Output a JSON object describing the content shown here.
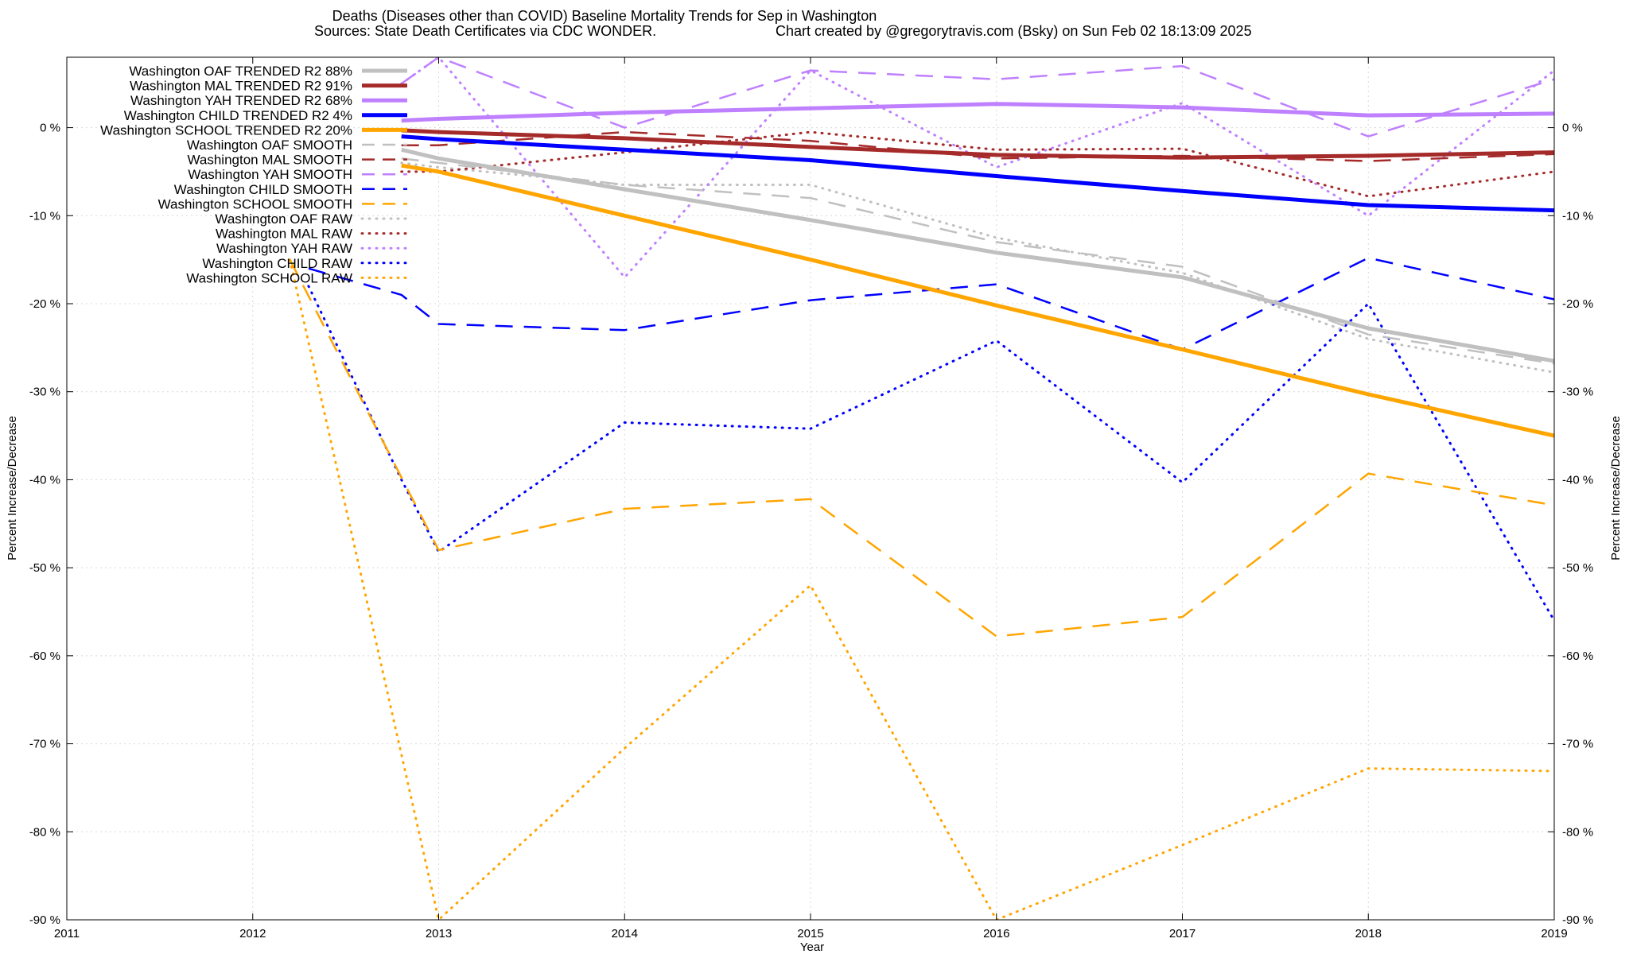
{
  "chart_data": {
    "type": "line",
    "title": "Deaths (Diseases other than COVID)  Baseline Mortality Trends for Sep in Washington",
    "subtitle_left": "Sources: State Death Certificates via CDC WONDER.",
    "subtitle_right": "Chart created by @gregorytravis.com (Bsky) on Sun Feb 02 18:13:09 2025",
    "xlabel": "Year",
    "ylabel": "Percent Increase/Decrease",
    "y2label": "Percent Increase/Decrease",
    "xlim": [
      2011,
      2019
    ],
    "ylim": [
      -90,
      8
    ],
    "x_ticks": [
      "2011",
      "2012",
      "2013",
      "2014",
      "2015",
      "2016",
      "2017",
      "2018",
      "2019"
    ],
    "y_ticks": [
      "0 %",
      "-10 %",
      "-20 %",
      "-30 %",
      "-40 %",
      "-50 %",
      "-60 %",
      "-70 %",
      "-80 %",
      "-90 %"
    ],
    "y_tick_values": [
      0,
      -10,
      -20,
      -30,
      -40,
      -50,
      -60,
      -70,
      -80,
      -90
    ],
    "grid": true,
    "legend_position": "top-left",
    "series": [
      {
        "name": "Washington OAF TRENDED R2  88%",
        "color": "#c0c0c0",
        "style": "solid",
        "x": [
          2012.8,
          2013,
          2014,
          2015,
          2016,
          2017,
          2018,
          2019
        ],
        "values": [
          -2.5,
          -3.5,
          -7,
          -10.5,
          -14.2,
          -17,
          -22.8,
          -26.5
        ]
      },
      {
        "name": "Washington MAL TRENDED R2  91%",
        "color": "#a52a2a",
        "style": "solid",
        "x": [
          2012.8,
          2013,
          2014,
          2015,
          2016,
          2017,
          2018,
          2019
        ],
        "values": [
          -0.3,
          -0.5,
          -1.2,
          -2.2,
          -3.1,
          -3.4,
          -3.2,
          -2.8
        ]
      },
      {
        "name": "Washington YAH TRENDED R2  68%",
        "color": "#bf80ff",
        "style": "solid",
        "x": [
          2012.8,
          2013,
          2014,
          2015,
          2016,
          2017,
          2018,
          2019
        ],
        "values": [
          0.8,
          1.0,
          1.7,
          2.2,
          2.7,
          2.3,
          1.4,
          1.6
        ]
      },
      {
        "name": "Washington CHILD TRENDED R2   4%",
        "color": "#0000ff",
        "style": "solid",
        "x": [
          2012.8,
          2013,
          2014,
          2015,
          2016,
          2017,
          2018,
          2019
        ],
        "values": [
          -1.0,
          -1.3,
          -2.5,
          -3.7,
          -5.5,
          -7.2,
          -8.8,
          -9.4
        ]
      },
      {
        "name": "Washington SCHOOL TRENDED R2  20%",
        "color": "#ffa500",
        "style": "solid",
        "x": [
          2012.8,
          2013,
          2014,
          2015,
          2016,
          2017,
          2018,
          2019
        ],
        "values": [
          -4.3,
          -5.0,
          -10.0,
          -15.0,
          -20.2,
          -25.2,
          -30.3,
          -35.0
        ]
      },
      {
        "name": "Washington OAF SMOOTH",
        "color": "#c0c0c0",
        "style": "dashed",
        "x": [
          2012.8,
          2013,
          2014,
          2015,
          2016,
          2017,
          2018,
          2019
        ],
        "values": [
          -3.5,
          -4.0,
          -6.5,
          -8.0,
          -13.0,
          -15.8,
          -23.5,
          -26.8
        ]
      },
      {
        "name": "Washington MAL SMOOTH",
        "color": "#a52a2a",
        "style": "dashed",
        "x": [
          2012.8,
          2013,
          2014,
          2015,
          2016,
          2017,
          2018,
          2019
        ],
        "values": [
          -2.0,
          -2.0,
          -0.5,
          -1.5,
          -3.5,
          -3.2,
          -3.8,
          -3.0
        ]
      },
      {
        "name": "Washington YAH SMOOTH",
        "color": "#bf80ff",
        "style": "dashed",
        "x": [
          2012.8,
          2013,
          2014,
          2015,
          2016,
          2017,
          2018,
          2019
        ],
        "values": [
          5.0,
          8.0,
          0.0,
          6.5,
          5.5,
          7.0,
          -1.0,
          5.5
        ]
      },
      {
        "name": "Washington CHILD SMOOTH",
        "color": "#0000ff",
        "style": "dashed",
        "x": [
          2012.3,
          2012.8,
          2013,
          2014,
          2015,
          2016,
          2017,
          2018,
          2019
        ],
        "values": [
          -16.0,
          -19.0,
          -22.3,
          -23.0,
          -19.6,
          -17.8,
          -25.2,
          -14.8,
          -19.5
        ]
      },
      {
        "name": "Washington SCHOOL SMOOTH",
        "color": "#ffa500",
        "style": "dashed",
        "x": [
          2012.2,
          2013,
          2014,
          2015,
          2016,
          2017,
          2018,
          2019
        ],
        "values": [
          -15.0,
          -48.0,
          -43.3,
          -42.2,
          -57.8,
          -55.6,
          -39.3,
          -42.9
        ]
      },
      {
        "name": "Washington OAF RAW",
        "color": "#c0c0c0",
        "style": "dotted",
        "x": [
          2012.8,
          2013,
          2014,
          2015,
          2016,
          2017,
          2018,
          2019
        ],
        "values": [
          -4.0,
          -4.5,
          -6.5,
          -6.5,
          -12.5,
          -16.5,
          -24.0,
          -27.8
        ]
      },
      {
        "name": "Washington MAL RAW",
        "color": "#a52a2a",
        "style": "dotted",
        "x": [
          2012.8,
          2013,
          2014,
          2015,
          2016,
          2017,
          2018,
          2019
        ],
        "values": [
          -5.0,
          -5.0,
          -2.8,
          -0.5,
          -2.5,
          -2.4,
          -7.8,
          -5.0
        ]
      },
      {
        "name": "Washington YAH RAW",
        "color": "#bf80ff",
        "style": "dotted",
        "x": [
          2012.8,
          2013,
          2014,
          2015,
          2016,
          2017,
          2018,
          2019
        ],
        "values": [
          5.0,
          8.0,
          -17.0,
          6.5,
          -4.5,
          2.8,
          -10.0,
          6.5
        ]
      },
      {
        "name": "Washington CHILD RAW",
        "color": "#0000ff",
        "style": "dotted",
        "x": [
          2012.3,
          2012.8,
          2013,
          2014,
          2015,
          2016,
          2017,
          2018,
          2019
        ],
        "values": [
          -18.0,
          -40.0,
          -48.2,
          -33.5,
          -34.2,
          -24.2,
          -40.3,
          -20.0,
          -56.0
        ]
      },
      {
        "name": "Washington SCHOOL RAW",
        "color": "#ffa500",
        "style": "dotted",
        "x": [
          2012.2,
          2013,
          2014,
          2015,
          2016,
          2017,
          2018,
          2019
        ],
        "values": [
          -15.0,
          -90.0,
          -70.5,
          -52.0,
          -90.0,
          -81.5,
          -72.8,
          -73.1
        ]
      }
    ]
  }
}
